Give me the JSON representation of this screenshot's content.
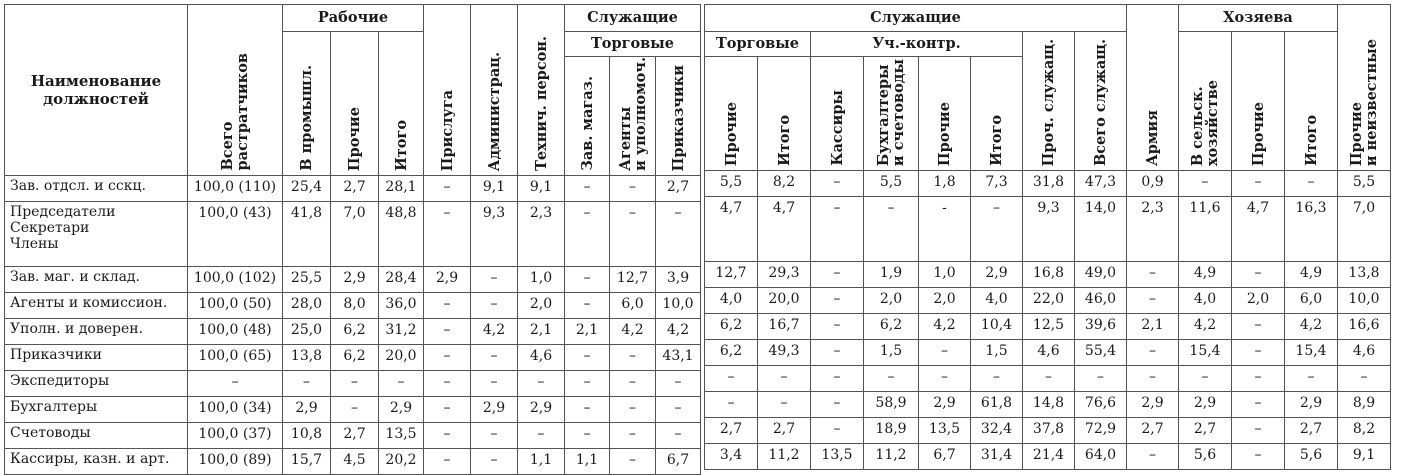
{
  "left": {
    "headers": {
      "name": "Наименование\nдолжностей",
      "total": "Всего\nрастратчиков",
      "workers": "Рабочие",
      "w_ind": "В промышл.",
      "w_other": "Прочие",
      "w_total": "Итого",
      "servants": "Прислуга",
      "admin": "Администрац.",
      "tech": "Технич. персон.",
      "employees": "Служащие",
      "trade": "Торговые",
      "e_store": "Зав. магаз.",
      "e_agents": "Агенты\nи уполномоч.",
      "e_clerks": "Приказчики"
    },
    "rows": [
      {
        "name": "Зав. отдсл. и сскц.",
        "c": [
          "100,0 (110)",
          "25,4",
          "2,7",
          "28,1",
          "–",
          "9,1",
          "9,1",
          "–",
          "–",
          "2,7"
        ]
      },
      {
        "name": "Председатели\nСекретари\nЧлены",
        "c": [
          "100,0 (43)",
          "41,8",
          "7,0",
          "48,8",
          "–",
          "9,3",
          "2,3",
          "–",
          "–",
          "–"
        ]
      },
      {
        "name": "Зав. маг. и склад.",
        "c": [
          "100,0 (102)",
          "25,5",
          "2,9",
          "28,4",
          "2,9",
          "–",
          "1,0",
          "–",
          "12,7",
          "3,9"
        ]
      },
      {
        "name": "Агенты и комиссион.",
        "c": [
          "100,0 (50)",
          "28,0",
          "8,0",
          "36,0",
          "–",
          "–",
          "2,0",
          "–",
          "6,0",
          "10,0"
        ]
      },
      {
        "name": "Уполн. и доверен.",
        "c": [
          "100,0 (48)",
          "25,0",
          "6,2",
          "31,2",
          "–",
          "4,2",
          "2,1",
          "2,1",
          "4,2",
          "4,2"
        ]
      },
      {
        "name": "Приказчики",
        "c": [
          "100,0 (65)",
          "13,8",
          "6,2",
          "20,0",
          "–",
          "–",
          "4,6",
          "–",
          "–",
          "43,1"
        ]
      },
      {
        "name": "Экспедиторы",
        "c": [
          "–",
          "–",
          "–",
          "–",
          "–",
          "–",
          "–",
          "–",
          "–",
          "–"
        ]
      },
      {
        "name": "Бухгалтеры",
        "c": [
          "100,0 (34)",
          "2,9",
          "–",
          "2,9",
          "–",
          "2,9",
          "2,9",
          "–",
          "–",
          "–"
        ]
      },
      {
        "name": "Счетоводы",
        "c": [
          "100,0 (37)",
          "10,8",
          "2,7",
          "13,5",
          "–",
          "–",
          "–",
          "–",
          "–",
          "–"
        ]
      },
      {
        "name": "Кассиры, казн. и арт.",
        "c": [
          "100,0 (89)",
          "15,7",
          "4,5",
          "20,2",
          "–",
          "–",
          "1,1",
          "1,1",
          "–",
          "6,7"
        ]
      }
    ]
  },
  "right": {
    "headers": {
      "employees": "Служащие",
      "trade": "Торговые",
      "acc": "Уч.-контр.",
      "t_other": "Прочие",
      "t_total": "Итого",
      "cashiers": "Кассиры",
      "bookkeepers": "Бухгалтеры\nи счетоводы",
      "a_other": "Прочие",
      "a_total": "Итого",
      "other_emp": "Проч. служащ.",
      "all_emp": "Всего служащ.",
      "army": "Армия",
      "owners": "Хозяева",
      "o_agri": "В сельск.\nхозяйстве",
      "o_other": "Прочие",
      "o_total": "Итого",
      "unknown": "Прочие\nи неизвестные"
    },
    "rows": [
      [
        "5,5",
        "8,2",
        "–",
        "5,5",
        "1,8",
        "7,3",
        "31,8",
        "47,3",
        "0,9",
        "–",
        "–",
        "–",
        "5,5"
      ],
      [
        "4,7",
        "4,7",
        "–",
        "–",
        "-",
        "–",
        "9,3",
        "14,0",
        "2,3",
        "11,6",
        "4,7",
        "16,3",
        "7,0"
      ],
      [
        "12,7",
        "29,3",
        "–",
        "1,9",
        "1,0",
        "2,9",
        "16,8",
        "49,0",
        "–",
        "4,9",
        "–",
        "4,9",
        "13,8"
      ],
      [
        "4,0",
        "20,0",
        "–",
        "2,0",
        "2,0",
        "4,0",
        "22,0",
        "46,0",
        "–",
        "4,0",
        "2,0",
        "6,0",
        "10,0"
      ],
      [
        "6,2",
        "16,7",
        "–",
        "6,2",
        "4,2",
        "10,4",
        "12,5",
        "39,6",
        "2,1",
        "4,2",
        "–",
        "4,2",
        "16,6"
      ],
      [
        "6,2",
        "49,3",
        "–",
        "1,5",
        "–",
        "1,5",
        "4,6",
        "55,4",
        "–",
        "15,4",
        "–",
        "15,4",
        "4,6"
      ],
      [
        "–",
        "–",
        "–",
        "–",
        "–",
        "–",
        "–",
        "–",
        "–",
        "–",
        "–",
        "–",
        "–"
      ],
      [
        "–",
        "–",
        "–",
        "58,9",
        "2,9",
        "61,8",
        "14,8",
        "76,6",
        "2,9",
        "2,9",
        "–",
        "2,9",
        "8,9"
      ],
      [
        "2,7",
        "2,7",
        "–",
        "18,9",
        "13,5",
        "32,4",
        "37,8",
        "72,9",
        "2,7",
        "2,7",
        "–",
        "2,7",
        "8,2"
      ],
      [
        "3,4",
        "11,2",
        "13,5",
        "11,2",
        "6,7",
        "31,4",
        "21,4",
        "64,0",
        "–",
        "5,6",
        "–",
        "5,6",
        "9,1"
      ]
    ]
  }
}
